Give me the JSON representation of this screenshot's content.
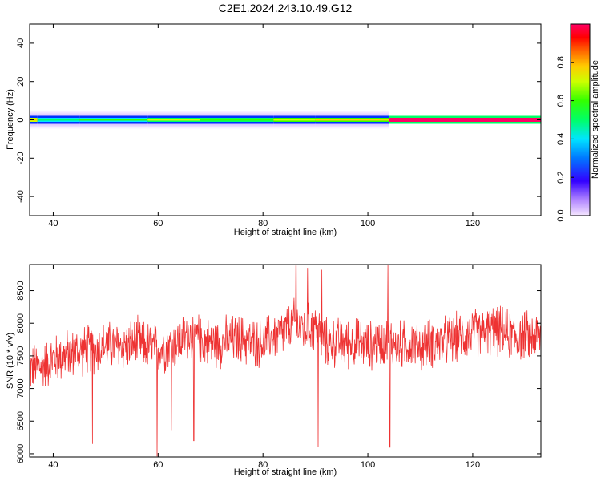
{
  "figure": {
    "title": "C2E1.2024.243.10.49.G12"
  },
  "chart_data": [
    {
      "type": "heatmap",
      "panel": "spectrogram",
      "xlabel": "Height of straight line (km)",
      "ylabel": "Frequency (Hz)",
      "xlim": [
        35.5,
        133
      ],
      "ylim": [
        -50,
        50
      ],
      "xticks": [
        40,
        60,
        80,
        100,
        120
      ],
      "yticks": [
        -40,
        -20,
        0,
        20,
        40
      ],
      "colorbar": {
        "label": "Normalized spectral amplitude",
        "ticks": [
          0.0,
          0.2,
          0.4,
          0.6,
          0.8
        ],
        "range": [
          0,
          1
        ]
      },
      "signal_frequency_hz": 0,
      "segments": [
        {
          "x_start": 35.5,
          "x_end": 37,
          "amplitude": 0.6
        },
        {
          "x_start": 37,
          "x_end": 45,
          "amplitude": 0.3
        },
        {
          "x_start": 45,
          "x_end": 58,
          "amplitude": 0.35
        },
        {
          "x_start": 58,
          "x_end": 68,
          "amplitude": 0.45
        },
        {
          "x_start": 68,
          "x_end": 82,
          "amplitude": 0.4
        },
        {
          "x_start": 82,
          "x_end": 90,
          "amplitude": 0.5
        },
        {
          "x_start": 90,
          "x_end": 104,
          "amplitude": 0.55
        },
        {
          "x_start": 104,
          "x_end": 133,
          "amplitude": 0.95
        }
      ]
    },
    {
      "type": "line",
      "panel": "snr",
      "xlabel": "Height of straight line (km)",
      "ylabel": "SNR (10 * v/v)",
      "xlim": [
        35.5,
        133
      ],
      "ylim": [
        5950,
        8900
      ],
      "xticks": [
        40,
        60,
        80,
        100,
        120
      ],
      "yticks": [
        6000,
        6500,
        7000,
        7500,
        8000,
        8500
      ],
      "color": "#ee3333",
      "series": [
        {
          "x": [
            35.5,
            38,
            40,
            42,
            44,
            46,
            48,
            50,
            52,
            54,
            56,
            58,
            60,
            62,
            64,
            66,
            68,
            70,
            72,
            74,
            76,
            78,
            80,
            82,
            84,
            86,
            88,
            90,
            92,
            94,
            96,
            98,
            100,
            102,
            104,
            106,
            108,
            110,
            112,
            114,
            116,
            118,
            120,
            122,
            124,
            126,
            128,
            130,
            133
          ],
          "y": [
            7300,
            7350,
            7450,
            7500,
            7550,
            7600,
            7600,
            7650,
            7650,
            7650,
            7700,
            7650,
            7600,
            7650,
            7700,
            7850,
            7750,
            7700,
            7700,
            7750,
            7750,
            7700,
            7700,
            7800,
            7850,
            8000,
            7900,
            7950,
            7700,
            7700,
            7700,
            7700,
            7650,
            7700,
            7750,
            7650,
            7700,
            7650,
            7700,
            7700,
            7750,
            7800,
            7850,
            7850,
            7900,
            7850,
            7800,
            7800,
            7800
          ],
          "noise_amplitude": 450,
          "spikes": [
            {
              "x": 59.8,
              "y": 5960
            },
            {
              "x": 62.5,
              "y": 6350
            },
            {
              "x": 66.8,
              "y": 6200
            },
            {
              "x": 86.3,
              "y": 8880
            },
            {
              "x": 88.5,
              "y": 8850
            },
            {
              "x": 90.5,
              "y": 6100
            },
            {
              "x": 91.2,
              "y": 8820
            },
            {
              "x": 103.8,
              "y": 8900
            },
            {
              "x": 104.2,
              "y": 6100
            },
            {
              "x": 47.5,
              "y": 6150
            }
          ]
        }
      ]
    }
  ]
}
